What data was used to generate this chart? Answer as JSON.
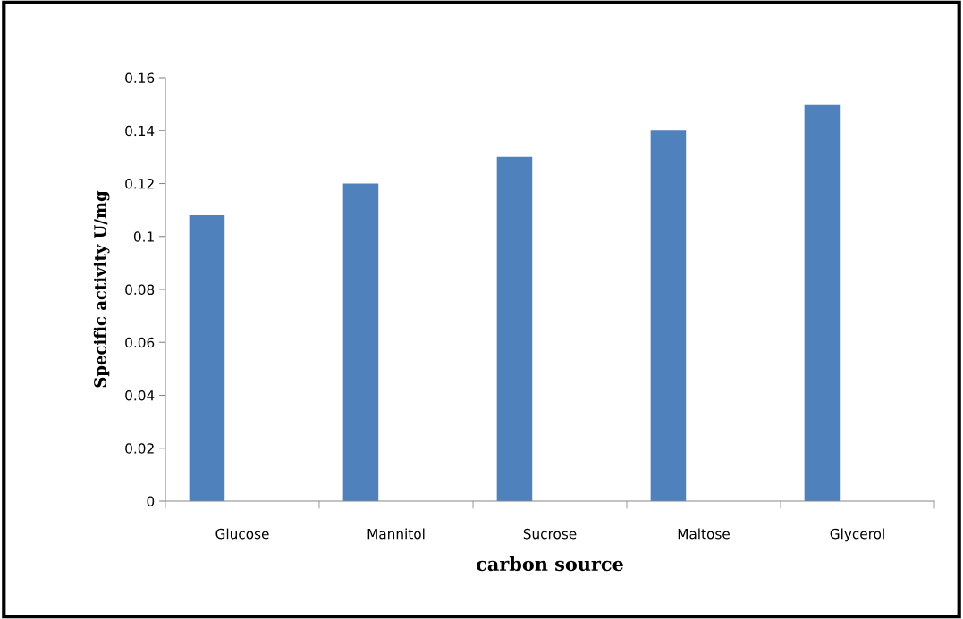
{
  "chart_data": {
    "type": "bar",
    "xlabel": "carbon source",
    "ylabel": "Specific activity U/mg",
    "categories": [
      "Glucose",
      "Mannitol",
      "Sucrose",
      "Maltose",
      "Glycerol"
    ],
    "values": [
      0.108,
      0.12,
      0.13,
      0.14,
      0.15
    ],
    "color": "#4f81bd",
    "ylim": [
      0,
      0.16
    ],
    "yticks": [
      {
        "value": 0,
        "label": "0"
      },
      0.02,
      0.04,
      0.06,
      0.08,
      {
        "value": 0.1,
        "label": "0.1"
      },
      0.12,
      0.14,
      0.16
    ],
    "grid": false
  }
}
